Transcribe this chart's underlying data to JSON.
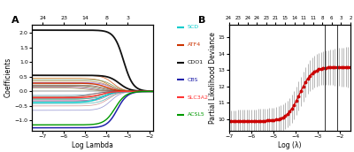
{
  "panel_A": {
    "title_label": "A",
    "xlabel": "Log Lambda",
    "ylabel": "Coefficients",
    "top_ticks": [
      "24",
      "23",
      "14",
      "8",
      "3"
    ],
    "top_tick_positions": [
      -7.0,
      -6.0,
      -5.0,
      -4.0,
      -3.0
    ],
    "xlim": [
      -7.5,
      -1.8
    ],
    "ylim": [
      -1.35,
      2.3
    ],
    "legend_labels": [
      "SCD",
      "ATF4",
      "CDO1",
      "CBS",
      "SLC3A2",
      "ACSL5"
    ],
    "legend_colors": [
      "#00cccc",
      "#cc3300",
      "#111111",
      "#2222aa",
      "#ff3333",
      "#009900"
    ]
  },
  "panel_B": {
    "title_label": "B",
    "xlabel": "Log (λ)",
    "ylabel": "Partial Likelihood Deviance",
    "top_ticks": [
      "24",
      "23",
      "24",
      "24",
      "23",
      "21",
      "15",
      "14",
      "11",
      "11",
      "8",
      "6",
      "3",
      "2"
    ],
    "xlim": [
      -7.0,
      -1.5
    ],
    "ylim": [
      9.3,
      15.8
    ],
    "vline1": -2.65,
    "vline2": -2.1,
    "mean_color": "#cc0000",
    "band_color": "#aaaaaa"
  }
}
